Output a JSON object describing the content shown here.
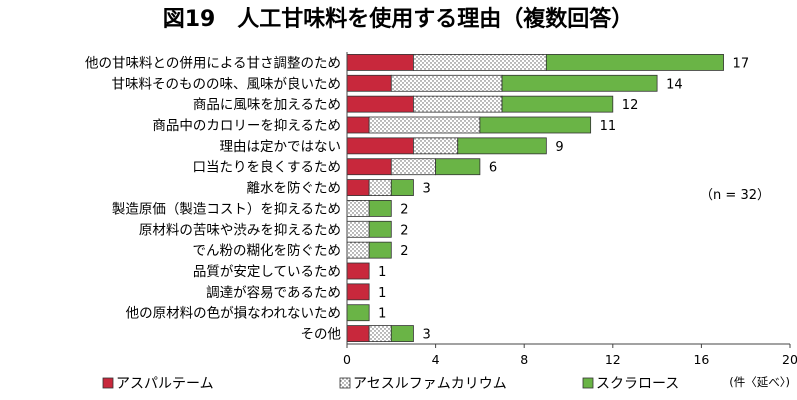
{
  "chart_data": {
    "type": "bar",
    "orientation": "horizontal",
    "stacked": true,
    "title": "図19　人工甘味料を使用する理由（複数回答）",
    "annotation": "（n = 32）",
    "unit_label": "(件〈延べ〉)",
    "categories": [
      "他の甘味料との併用による甘さ調整のため",
      "甘味料そのものの味、風味が良いため",
      "商品に風味を加えるため",
      "商品中のカロリーを抑えるため",
      "理由は定かではない",
      "口当たりを良くするため",
      "離水を防ぐため",
      "製造原価（製造コスト）を抑えるため",
      "原材料の苦味や渋みを抑えるため",
      "でん粉の糊化を防ぐため",
      "品質が安定しているため",
      "調達が容易であるため",
      "他の原材料の色が損なわれないため",
      "その他"
    ],
    "series": [
      {
        "name": "アスパルテーム",
        "color": "#c8283c",
        "pattern": "solid",
        "values": [
          3,
          2,
          3,
          1,
          3,
          2,
          1,
          0,
          0,
          0,
          1,
          1,
          0,
          1
        ]
      },
      {
        "name": "アセスルファムカリウム",
        "color": "#ffffff",
        "pattern": "dots",
        "values": [
          6,
          5,
          4,
          5,
          2,
          2,
          1,
          1,
          1,
          1,
          0,
          0,
          0,
          1
        ]
      },
      {
        "name": "スクラロース",
        "color": "#6ab446",
        "pattern": "solid",
        "values": [
          8,
          7,
          5,
          5,
          4,
          2,
          1,
          1,
          1,
          1,
          0,
          0,
          1,
          1
        ]
      }
    ],
    "totals": [
      17,
      14,
      12,
      11,
      9,
      6,
      3,
      2,
      2,
      2,
      1,
      1,
      1,
      3
    ],
    "xlim": [
      0,
      20
    ],
    "xticks": [
      0,
      4,
      8,
      12,
      16,
      20
    ],
    "grid": false,
    "legend_position": "bottom"
  }
}
